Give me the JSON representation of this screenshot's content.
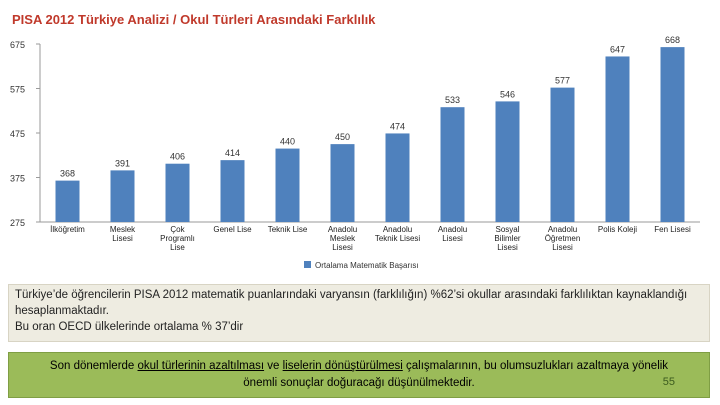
{
  "title": "PISA 2012 Türkiye Analizi / Okul Türleri Arasındaki Farklılık",
  "chart_data": {
    "type": "bar",
    "categories": [
      [
        "İlköğretim"
      ],
      [
        "Meslek",
        "Lisesi"
      ],
      [
        "Çok",
        "Programlı",
        "Lise"
      ],
      [
        "Genel Lise"
      ],
      [
        "Teknik Lise"
      ],
      [
        "Anadolu",
        "Meslek",
        "Lisesi"
      ],
      [
        "Anadolu",
        "Teknik Lisesi"
      ],
      [
        "Anadolu",
        "Lisesi"
      ],
      [
        "Sosyal",
        "Bilimler",
        "Lisesi"
      ],
      [
        "Anadolu",
        "Öğretmen",
        "Lisesi"
      ],
      [
        "Polis Koleji"
      ],
      [
        "Fen Lisesi"
      ]
    ],
    "series": [
      {
        "name": "Ortalama Matematik Başarısı",
        "values": [
          368,
          391,
          406,
          414,
          440,
          450,
          474,
          533,
          546,
          577,
          647,
          668
        ]
      }
    ],
    "value_labels": [
      "368",
      "391",
      "406",
      "414",
      "440",
      "450",
      "474",
      "533",
      "546",
      "577",
      "647",
      "668"
    ],
    "yticks": [
      675,
      575,
      475,
      375,
      275
    ],
    "ylim": [
      275,
      675
    ],
    "grid": false,
    "legend_position": "bottom",
    "bar_color": "#4f81bd"
  },
  "text_block": {
    "line1": "Türkiye’de öğrencilerin PISA 2012 matematik puanlarındaki varyansın (farklılığın) %62’si okullar arasındaki farklılıktan kaynaklandığı hesaplanmaktadır.",
    "line2": "Bu oran OECD ülkelerinde ortalama % 37’dir"
  },
  "note": {
    "part1": "Son dönemlerde ",
    "link1": "okul türlerinin azaltılması",
    "part2": " ve ",
    "link2": "liselerin dönüştürülmesi",
    "part3": " çalışmalarının, bu olumsuzlukları azaltmaya yönelik önemli sonuçlar doğuracağı düşünülmektedir."
  },
  "page_number": "55"
}
